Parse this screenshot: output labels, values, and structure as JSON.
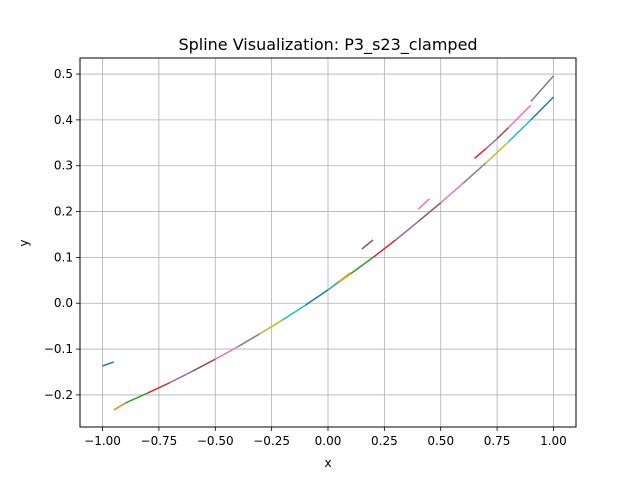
{
  "chart_data": {
    "type": "line",
    "title": "Spline Visualization: P3_s23_clamped",
    "xlabel": "x",
    "ylabel": "y",
    "xlim": [
      -1.1,
      1.1
    ],
    "ylim": [
      -0.27,
      0.535
    ],
    "grid": true,
    "x_ticks": [
      -1.0,
      -0.75,
      -0.5,
      -0.25,
      0.0,
      0.25,
      0.5,
      0.75,
      1.0
    ],
    "x_tick_labels": [
      "−1.00",
      "−0.75",
      "−0.50",
      "−0.25",
      "0.00",
      "0.25",
      "0.50",
      "0.75",
      "1.00"
    ],
    "y_ticks": [
      -0.2,
      -0.1,
      0.0,
      0.1,
      0.2,
      0.3,
      0.4,
      0.5
    ],
    "y_tick_labels": [
      "−0.2",
      "−0.1",
      "0.0",
      "0.1",
      "0.2",
      "0.3",
      "0.4",
      "0.5"
    ],
    "series": [
      {
        "color": "#1f77b4",
        "x": [
          -1.0,
          -0.95
        ],
        "y": [
          -0.137,
          -0.128
        ]
      },
      {
        "color": "#ff7f0e",
        "x": [
          -0.95,
          -0.9
        ],
        "y": [
          -0.233,
          -0.218
        ]
      },
      {
        "color": "#2ca02c",
        "x": [
          -0.9,
          -0.8
        ],
        "y": [
          -0.218,
          -0.196
        ]
      },
      {
        "color": "#d62728",
        "x": [
          -0.8,
          -0.7
        ],
        "y": [
          -0.196,
          -0.173
        ]
      },
      {
        "color": "#9467bd",
        "x": [
          -0.7,
          -0.6
        ],
        "y": [
          -0.173,
          -0.148
        ]
      },
      {
        "color": "#8c564b",
        "x": [
          -0.6,
          -0.5
        ],
        "y": [
          -0.148,
          -0.122
        ]
      },
      {
        "color": "#e377c2",
        "x": [
          -0.5,
          -0.4
        ],
        "y": [
          -0.122,
          -0.095
        ]
      },
      {
        "color": "#7f7f7f",
        "x": [
          -0.4,
          -0.3
        ],
        "y": [
          -0.095,
          -0.066
        ]
      },
      {
        "color": "#bcbd22",
        "x": [
          -0.3,
          -0.2
        ],
        "y": [
          -0.066,
          -0.036
        ]
      },
      {
        "color": "#17becf",
        "x": [
          -0.2,
          -0.1
        ],
        "y": [
          -0.036,
          -0.004
        ]
      },
      {
        "color": "#1f77b4",
        "x": [
          -0.1,
          0.0
        ],
        "y": [
          -0.004,
          0.029
        ]
      },
      {
        "color": "#ff7f0e",
        "x": [
          0.0,
          0.1
        ],
        "y": [
          0.029,
          0.064
        ]
      },
      {
        "color": "#2ca02c",
        "x": [
          0.1,
          0.2
        ],
        "y": [
          0.064,
          0.1
        ]
      },
      {
        "color": "#d62728",
        "x": [
          0.2,
          0.3
        ],
        "y": [
          0.1,
          0.138
        ]
      },
      {
        "color": "#9467bd",
        "x": [
          0.3,
          0.4
        ],
        "y": [
          0.138,
          0.178
        ]
      },
      {
        "color": "#8c564b",
        "x": [
          0.4,
          0.5
        ],
        "y": [
          0.178,
          0.219
        ]
      },
      {
        "color": "#e377c2",
        "x": [
          0.5,
          0.6
        ],
        "y": [
          0.219,
          0.262
        ]
      },
      {
        "color": "#7f7f7f",
        "x": [
          0.6,
          0.7
        ],
        "y": [
          0.262,
          0.306
        ]
      },
      {
        "color": "#bcbd22",
        "x": [
          0.7,
          0.8
        ],
        "y": [
          0.306,
          0.352
        ]
      },
      {
        "color": "#17becf",
        "x": [
          0.8,
          0.9
        ],
        "y": [
          0.352,
          0.4
        ]
      },
      {
        "color": "#1f77b4",
        "x": [
          0.9,
          1.0
        ],
        "y": [
          0.4,
          0.45
        ]
      }
    ],
    "overlay_series": [
      {
        "color": "#e377c2",
        "x": [
          0.4,
          0.45
        ],
        "y": [
          0.205,
          0.228
        ]
      },
      {
        "color": "#8c564b",
        "x": [
          0.15,
          0.2
        ],
        "y": [
          0.118,
          0.138
        ]
      },
      {
        "color": "#17becf",
        "x": [
          0.0,
          0.05
        ],
        "y": [
          0.029,
          0.048
        ]
      },
      {
        "color": "#bcbd22",
        "x": [
          0.05,
          0.1
        ],
        "y": [
          0.048,
          0.067
        ]
      },
      {
        "color": "#d62728",
        "x": [
          0.65,
          0.7
        ],
        "y": [
          0.316,
          0.337
        ]
      },
      {
        "color": "#9467bd",
        "x": [
          0.7,
          0.75
        ],
        "y": [
          0.337,
          0.359
        ]
      },
      {
        "color": "#8c564b",
        "x": [
          0.75,
          0.8
        ],
        "y": [
          0.359,
          0.383
        ]
      },
      {
        "color": "#e377c2",
        "x": [
          0.8,
          0.9
        ],
        "y": [
          0.383,
          0.432
        ]
      },
      {
        "color": "#7f7f7f",
        "x": [
          0.9,
          1.0
        ],
        "y": [
          0.44,
          0.496
        ]
      }
    ]
  }
}
